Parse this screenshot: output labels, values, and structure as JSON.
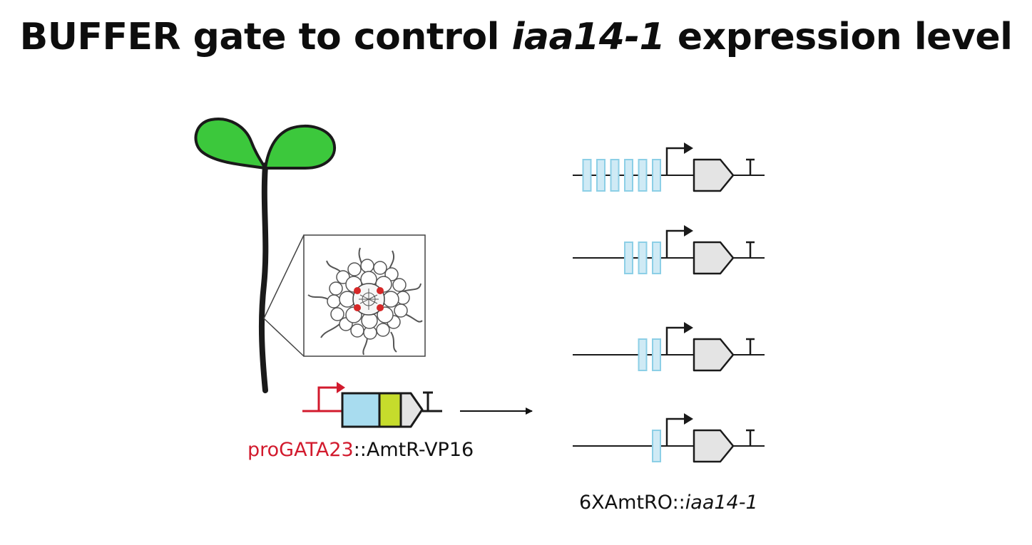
{
  "title": {
    "prefix": "BUFFER gate to control ",
    "gene_italic": "iaa14-1",
    "suffix": " expression level"
  },
  "driver_label": {
    "promoter": "proGATA23",
    "separator": "::",
    "effector": "AmtR-VP16"
  },
  "reporter_label": {
    "operator": "6XAmtRO",
    "separator": "::",
    "gene_italic": "iaa14-1"
  },
  "constructs": [
    {
      "operator_copies": 6
    },
    {
      "operator_copies": 3
    },
    {
      "operator_copies": 2
    },
    {
      "operator_copies": 1
    }
  ],
  "colors": {
    "leaf_green": "#3cc83c",
    "promoter_red": "#d21a2d",
    "amtR_blue": "#a8dcef",
    "vp16_yellow": "#c6dc2c",
    "operator_blue": "#cfeaf5",
    "cds_gray": "#e4e4e4",
    "xylem_red": "#d62828"
  }
}
